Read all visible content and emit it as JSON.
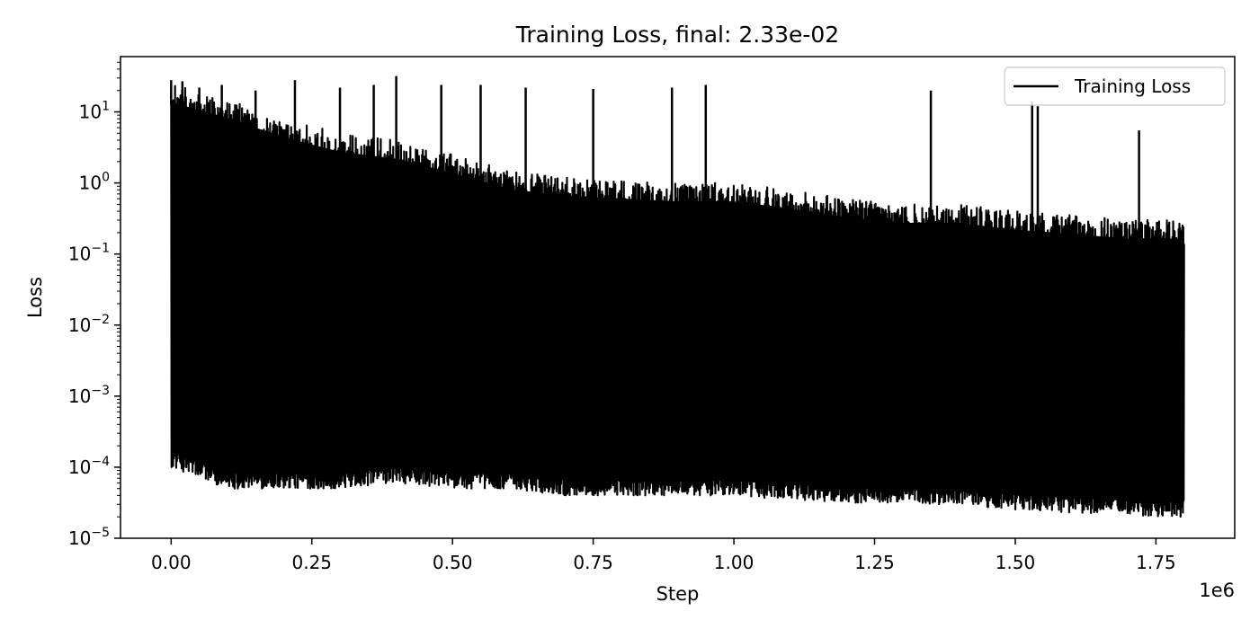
{
  "chart_data": {
    "type": "line",
    "title": "Training Loss, final: 2.33e-02",
    "xlabel": "Step",
    "ylabel": "Loss",
    "x_offset_label": "1e6",
    "xscale": "linear",
    "yscale": "log",
    "xlim": [
      -0.09,
      1.89
    ],
    "ylim": [
      1e-05,
      60
    ],
    "x_ticks": [
      {
        "value": 0.0,
        "label": "0.00"
      },
      {
        "value": 0.25,
        "label": "0.25"
      },
      {
        "value": 0.5,
        "label": "0.50"
      },
      {
        "value": 0.75,
        "label": "0.75"
      },
      {
        "value": 1.0,
        "label": "1.00"
      },
      {
        "value": 1.25,
        "label": "1.25"
      },
      {
        "value": 1.5,
        "label": "1.50"
      },
      {
        "value": 1.75,
        "label": "1.75"
      }
    ],
    "y_ticks": [
      {
        "value": 10,
        "base": "10",
        "exp": "1"
      },
      {
        "value": 1,
        "base": "10",
        "exp": "0"
      },
      {
        "value": 0.1,
        "base": "10",
        "exp": "−1"
      },
      {
        "value": 0.01,
        "base": "10",
        "exp": "−2"
      },
      {
        "value": 0.001,
        "base": "10",
        "exp": "−3"
      },
      {
        "value": 0.0001,
        "base": "10",
        "exp": "−4"
      },
      {
        "value": 1e-05,
        "base": "10",
        "exp": "−5"
      }
    ],
    "legend": {
      "position": "top-right",
      "entries": [
        "Training Loss"
      ]
    },
    "grid": false,
    "series": [
      {
        "name": "Training Loss",
        "color": "#000000",
        "x_range": [
          0,
          1.8
        ],
        "final_value": 0.0233,
        "upper_envelope": {
          "x": [
            0.0,
            0.1,
            0.2,
            0.3,
            0.4,
            0.5,
            0.6,
            0.7,
            0.8,
            0.9,
            1.0,
            1.1,
            1.2,
            1.3,
            1.4,
            1.5,
            1.6,
            1.7,
            1.8
          ],
          "y": [
            25,
            15,
            8,
            5,
            4,
            2.5,
            1.5,
            1.2,
            1.1,
            1.0,
            1.0,
            0.8,
            0.6,
            0.5,
            0.5,
            0.4,
            0.35,
            0.3,
            0.3
          ]
        },
        "lower_envelope": {
          "x": [
            0.0,
            0.1,
            0.2,
            0.3,
            0.4,
            0.5,
            0.6,
            0.7,
            0.8,
            0.9,
            1.0,
            1.1,
            1.2,
            1.3,
            1.4,
            1.5,
            1.6,
            1.7,
            1.8
          ],
          "y": [
            0.0001,
            5e-05,
            5e-05,
            5e-05,
            6e-05,
            5e-05,
            5e-05,
            4e-05,
            4e-05,
            4e-05,
            4e-05,
            3.5e-05,
            3.2e-05,
            3e-05,
            3e-05,
            2.5e-05,
            2.3e-05,
            2.1e-05,
            2e-05
          ]
        },
        "spikes": [
          {
            "x": 0.0,
            "y": 28
          },
          {
            "x": 0.02,
            "y": 27
          },
          {
            "x": 0.05,
            "y": 22
          },
          {
            "x": 0.09,
            "y": 24
          },
          {
            "x": 0.15,
            "y": 20
          },
          {
            "x": 0.22,
            "y": 28
          },
          {
            "x": 0.3,
            "y": 22
          },
          {
            "x": 0.36,
            "y": 24
          },
          {
            "x": 0.4,
            "y": 32
          },
          {
            "x": 0.48,
            "y": 24
          },
          {
            "x": 0.55,
            "y": 24
          },
          {
            "x": 0.63,
            "y": 22
          },
          {
            "x": 0.75,
            "y": 21
          },
          {
            "x": 0.89,
            "y": 22
          },
          {
            "x": 0.95,
            "y": 24
          },
          {
            "x": 1.35,
            "y": 20
          },
          {
            "x": 1.53,
            "y": 14
          },
          {
            "x": 1.54,
            "y": 12
          },
          {
            "x": 1.72,
            "y": 5.5
          }
        ]
      }
    ]
  }
}
